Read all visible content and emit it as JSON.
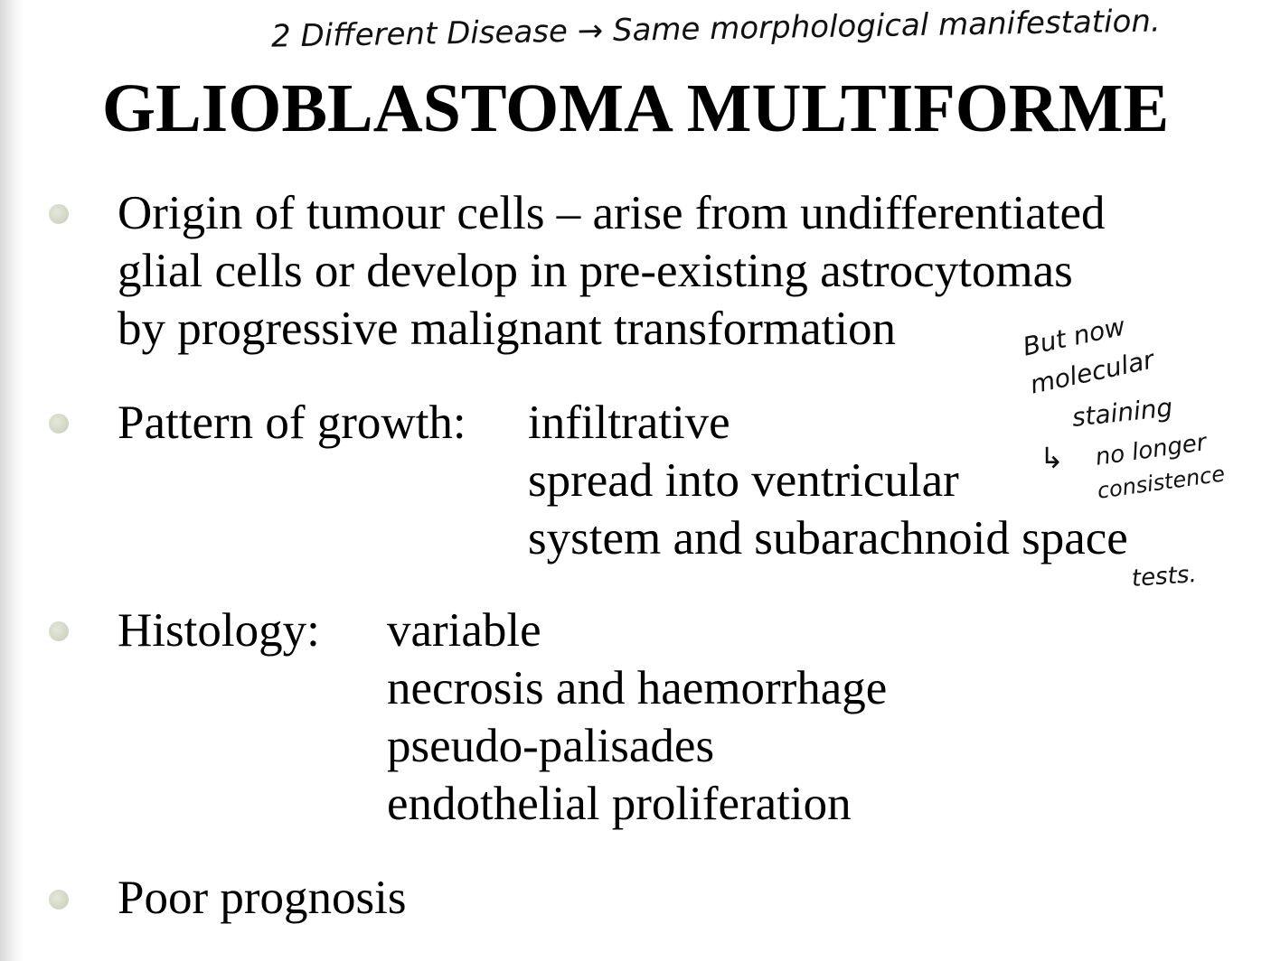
{
  "slide": {
    "title": "GLIOBLASTOMA MULTIFORME",
    "bullets": [
      {
        "lines": [
          "Origin of tumour cells – arise from undifferentiated",
          "glial cells or develop in pre-existing astrocytomas",
          "by progressive malignant transformation"
        ]
      },
      {
        "label": "Pattern of growth:",
        "lines": [
          "infiltrative",
          "spread into ventricular",
          "system and subarachnoid space"
        ]
      },
      {
        "label": "Histology:",
        "lines": [
          "variable",
          "necrosis and haemorrhage",
          "pseudo-palisades",
          "endothelial proliferation"
        ]
      },
      {
        "lines": [
          "Poor prognosis"
        ]
      }
    ]
  },
  "annotations": {
    "top": "2 Different Disease → Same morphological manifestation.",
    "side": [
      "But now",
      "molecular",
      "staining",
      "no longer",
      "consistence",
      "tests."
    ]
  }
}
